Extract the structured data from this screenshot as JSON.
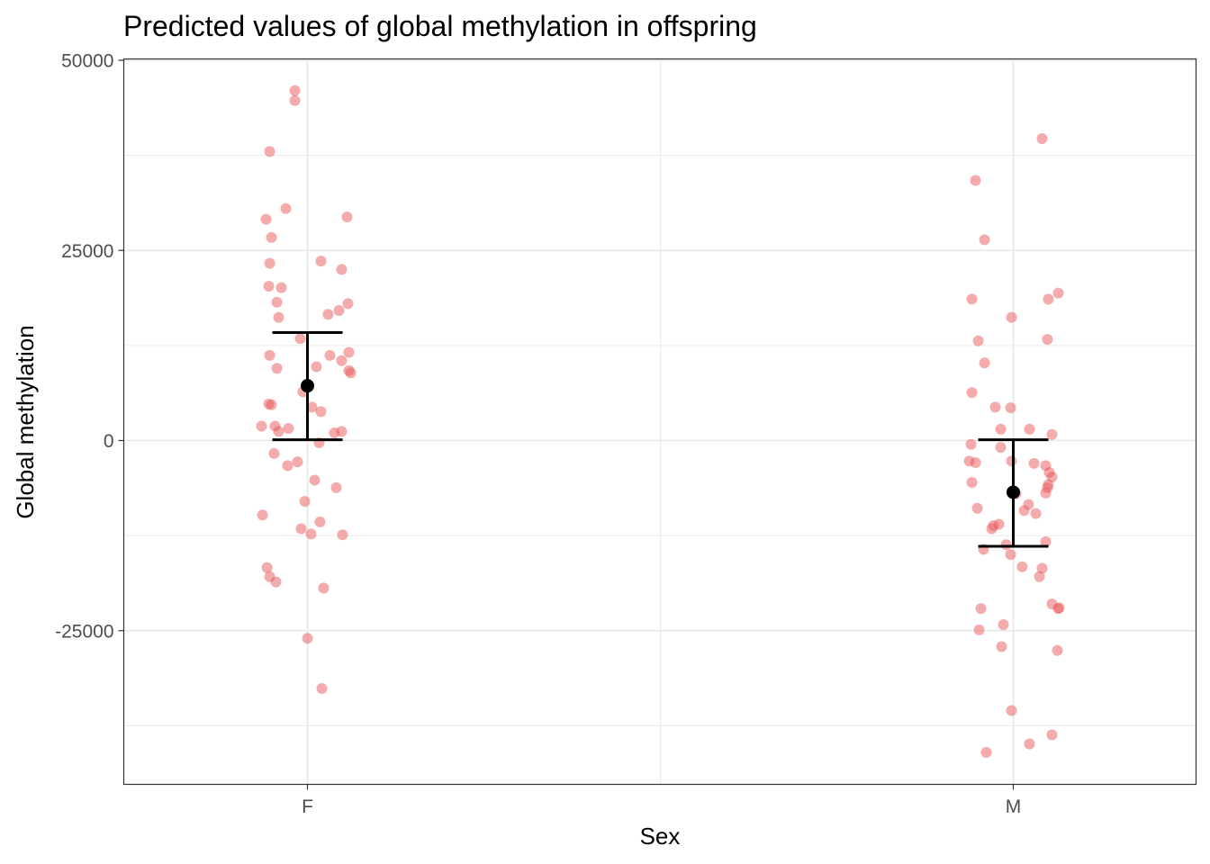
{
  "chart_data": {
    "type": "scatter",
    "title": "Predicted values of global methylation in offspring",
    "xlabel": "Sex",
    "ylabel": "Global methylation",
    "categories": [
      "F",
      "M"
    ],
    "ylim": [
      -45000,
      50000
    ],
    "yticks": [
      50000,
      25000,
      0,
      -25000
    ],
    "ytick_labels": [
      "50000",
      "25000",
      "0",
      "-25000"
    ],
    "grid": true,
    "point_color": "#e8585a",
    "errorbar_color": "#000000",
    "series": [
      {
        "category": "F",
        "points": [
          {
            "x": -0.0178,
            "y": 46000
          },
          {
            "x": -0.0178,
            "y": 44700
          },
          {
            "x": -0.0535,
            "y": 38000
          },
          {
            "x": -0.0306,
            "y": 30500
          },
          {
            "x": -0.0586,
            "y": 29100
          },
          {
            "x": 0.0561,
            "y": 29400
          },
          {
            "x": -0.051,
            "y": 26700
          },
          {
            "x": -0.0535,
            "y": 23300
          },
          {
            "x": 0.0191,
            "y": 23600
          },
          {
            "x": 0.0484,
            "y": 22500
          },
          {
            "x": -0.0548,
            "y": 20300
          },
          {
            "x": -0.037,
            "y": 20100
          },
          {
            "x": -0.0433,
            "y": 18200
          },
          {
            "x": 0.0574,
            "y": 18000
          },
          {
            "x": 0.0446,
            "y": 17100
          },
          {
            "x": 0.0293,
            "y": 16600
          },
          {
            "x": -0.0408,
            "y": 16200
          },
          {
            "x": -0.0102,
            "y": 13400
          },
          {
            "x": -0.0535,
            "y": 11200
          },
          {
            "x": 0.0319,
            "y": 11200
          },
          {
            "x": 0.0587,
            "y": 11600
          },
          {
            "x": 0.0484,
            "y": 10500
          },
          {
            "x": 0.0127,
            "y": 9700
          },
          {
            "x": -0.0433,
            "y": 9500
          },
          {
            "x": 0.0587,
            "y": 9200
          },
          {
            "x": 0.0612,
            "y": 8900
          },
          {
            "x": -0.0064,
            "y": 6400
          },
          {
            "x": 0.0064,
            "y": 4400
          },
          {
            "x": -0.0548,
            "y": 4800
          },
          {
            "x": -0.051,
            "y": 4700
          },
          {
            "x": 0.0191,
            "y": 3800
          },
          {
            "x": -0.065,
            "y": 1900
          },
          {
            "x": -0.0459,
            "y": 1900
          },
          {
            "x": -0.0268,
            "y": 1600
          },
          {
            "x": -0.0408,
            "y": 1200
          },
          {
            "x": 0.0484,
            "y": 1200
          },
          {
            "x": 0.0382,
            "y": 1000
          },
          {
            "x": 0.0166,
            "y": -300
          },
          {
            "x": -0.0472,
            "y": -1700
          },
          {
            "x": -0.014,
            "y": -2800
          },
          {
            "x": -0.0281,
            "y": -3300
          },
          {
            "x": 0.0102,
            "y": -5200
          },
          {
            "x": 0.0408,
            "y": -6200
          },
          {
            "x": -0.0038,
            "y": -8000
          },
          {
            "x": -0.0637,
            "y": -9800
          },
          {
            "x": 0.0178,
            "y": -10700
          },
          {
            "x": -0.0089,
            "y": -11600
          },
          {
            "x": 0.0051,
            "y": -12300
          },
          {
            "x": 0.0497,
            "y": -12400
          },
          {
            "x": -0.0573,
            "y": -16700
          },
          {
            "x": -0.0535,
            "y": -17900
          },
          {
            "x": -0.0446,
            "y": -18600
          },
          {
            "x": 0.0229,
            "y": -19400
          },
          {
            "x": 0.0,
            "y": -26000
          },
          {
            "x": 0.0204,
            "y": -32600
          }
        ],
        "mean": 7200,
        "ci": [
          100,
          14200
        ]
      },
      {
        "category": "M",
        "points": [
          {
            "x": 0.0408,
            "y": 39700
          },
          {
            "x": -0.0535,
            "y": 34200
          },
          {
            "x": -0.0408,
            "y": 26400
          },
          {
            "x": -0.0586,
            "y": 18600
          },
          {
            "x": 0.0497,
            "y": 18600
          },
          {
            "x": 0.0638,
            "y": 19400
          },
          {
            "x": -0.0025,
            "y": 16200
          },
          {
            "x": -0.0497,
            "y": 13100
          },
          {
            "x": 0.0484,
            "y": 13300
          },
          {
            "x": -0.0408,
            "y": 10200
          },
          {
            "x": -0.0586,
            "y": 6300
          },
          {
            "x": -0.0255,
            "y": 4400
          },
          {
            "x": -0.0038,
            "y": 4300
          },
          {
            "x": -0.0178,
            "y": 1500
          },
          {
            "x": 0.0229,
            "y": 1500
          },
          {
            "x": 0.0548,
            "y": 800
          },
          {
            "x": -0.0599,
            "y": -500
          },
          {
            "x": -0.0178,
            "y": -900
          },
          {
            "x": -0.0624,
            "y": -2700
          },
          {
            "x": -0.0535,
            "y": -2900
          },
          {
            "x": -0.0025,
            "y": -2700
          },
          {
            "x": 0.0293,
            "y": -3000
          },
          {
            "x": 0.0459,
            "y": -3300
          },
          {
            "x": 0.0548,
            "y": -4800
          },
          {
            "x": 0.051,
            "y": -4200
          },
          {
            "x": 0.0497,
            "y": -5800
          },
          {
            "x": 0.0484,
            "y": -6200
          },
          {
            "x": 0.0459,
            "y": -6900
          },
          {
            "x": -0.0586,
            "y": -5500
          },
          {
            "x": 0.0038,
            "y": -7000
          },
          {
            "x": 0.0217,
            "y": -8400
          },
          {
            "x": -0.051,
            "y": -8900
          },
          {
            "x": 0.0153,
            "y": -9200
          },
          {
            "x": 0.0319,
            "y": -9600
          },
          {
            "x": -0.0204,
            "y": -11000
          },
          {
            "x": -0.028,
            "y": -11200
          },
          {
            "x": -0.0306,
            "y": -11600
          },
          {
            "x": 0.0459,
            "y": -13300
          },
          {
            "x": -0.0102,
            "y": -13700
          },
          {
            "x": -0.0421,
            "y": -14300
          },
          {
            "x": -0.0038,
            "y": -15000
          },
          {
            "x": 0.0127,
            "y": -16600
          },
          {
            "x": 0.0408,
            "y": -16800
          },
          {
            "x": 0.037,
            "y": -17900
          },
          {
            "x": 0.0548,
            "y": -21500
          },
          {
            "x": 0.065,
            "y": -22000
          },
          {
            "x": 0.0637,
            "y": -22100
          },
          {
            "x": -0.0459,
            "y": -22100
          },
          {
            "x": -0.014,
            "y": -24200
          },
          {
            "x": -0.0484,
            "y": -24900
          },
          {
            "x": -0.0166,
            "y": -27100
          },
          {
            "x": 0.0625,
            "y": -27600
          },
          {
            "x": -0.0025,
            "y": -35500
          },
          {
            "x": 0.0548,
            "y": -38700
          },
          {
            "x": 0.0229,
            "y": -39900
          },
          {
            "x": -0.0383,
            "y": -41000
          }
        ],
        "mean": -6800,
        "ci": [
          -13900,
          100
        ]
      }
    ]
  }
}
